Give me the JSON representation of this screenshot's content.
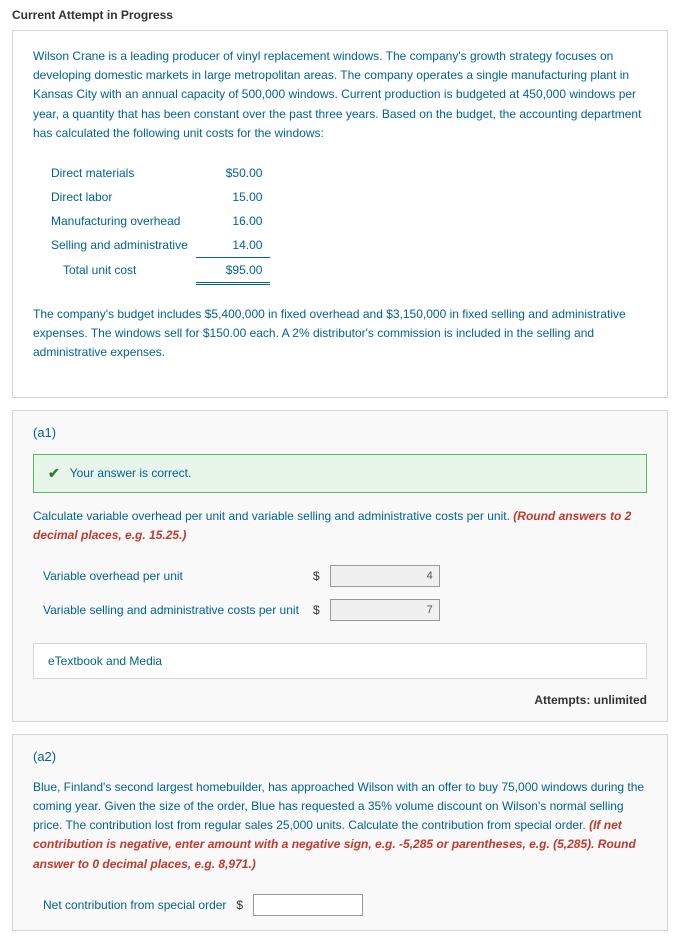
{
  "header": {
    "title": "Current Attempt in Progress"
  },
  "problem": {
    "intro": "Wilson Crane is a leading producer of vinyl replacement windows. The company's growth strategy focuses on developing domestic markets in large metropolitan areas. The company operates a single manufacturing plant in Kansas City with an annual capacity of 500,000 windows. Current production is budgeted at 450,000 windows per year, a quantity that has been constant over the past three years. Based on the budget, the accounting department has calculated the following unit costs for the windows:",
    "cost_rows": [
      {
        "label": "Direct materials",
        "value": "$50.00",
        "indent": false
      },
      {
        "label": "Direct labor",
        "value": "15.00",
        "indent": false
      },
      {
        "label": "Manufacturing overhead",
        "value": "16.00",
        "indent": false
      },
      {
        "label": "Selling and administrative",
        "value": "14.00",
        "indent": false
      },
      {
        "label": "Total unit cost",
        "value": "$95.00",
        "indent": true,
        "total": true
      }
    ],
    "followup": "The company's budget includes $5,400,000 in fixed overhead and $3,150,000 in fixed selling and administrative expenses. The windows sell for $150.00 each. A 2% distributor's commission is included in the selling and administrative expenses."
  },
  "a1": {
    "label": "(a1)",
    "success_msg": "Your answer is correct.",
    "instruction_text": "Calculate variable overhead per unit and variable selling and administrative costs per unit. ",
    "instruction_hint": "(Round answers to 2 decimal places, e.g. 15.25.)",
    "rows": [
      {
        "label": "Variable overhead per unit",
        "prefix": "$",
        "value": "4"
      },
      {
        "label": "Variable selling and administrative costs per unit",
        "prefix": "$",
        "value": "7"
      }
    ],
    "etextbook_label": "eTextbook and Media",
    "attempts": "Attempts: unlimited"
  },
  "a2": {
    "label": "(a2)",
    "instruction_text": "Blue, Finland's second largest homebuilder, has approached Wilson with an offer to buy 75,000 windows during the coming year. Given the size of the order, Blue has requested a 35% volume discount on Wilson's normal selling price. The contribution lost from regular sales 25,000 units. Calculate the contribution from special order. ",
    "instruction_hint": "(If net contribution is negative, enter amount with a negative sign, e.g. -5,285 or parentheses, e.g. (5,285). Round answer to 0 decimal places, e.g. 8,971.)",
    "row": {
      "label": "Net contribution from special order",
      "prefix": "$",
      "value": ""
    }
  },
  "styling": {
    "link_color": "#006298",
    "hint_color": "#c0392b",
    "success_bg": "#e8f5e9",
    "success_border": "#5cb85c",
    "box_border": "#d4d4d4",
    "part_bg": "#f9f9f9"
  }
}
